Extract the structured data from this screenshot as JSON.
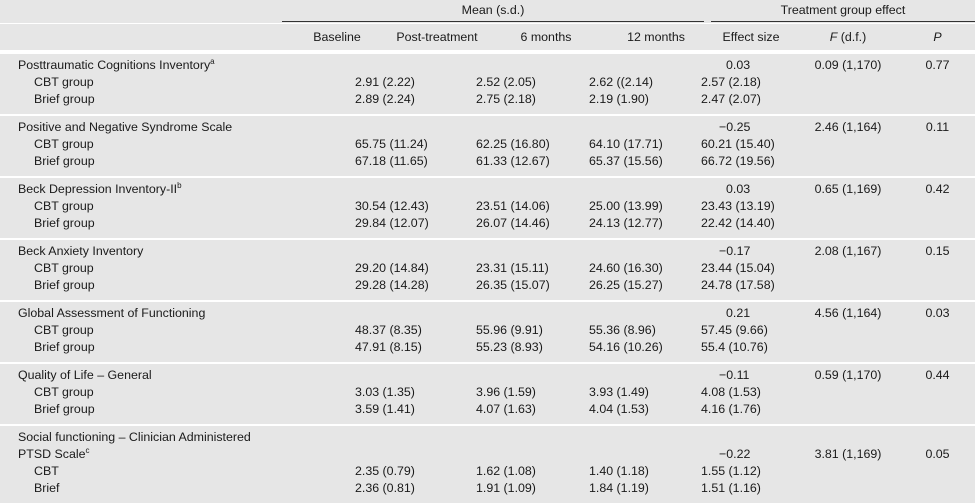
{
  "header": {
    "mean_group": "Mean (s.d.)",
    "effect_group": "Treatment group effect",
    "columns": {
      "baseline": "Baseline",
      "post": "Post-treatment",
      "m6": "6 months",
      "m12": "12 months",
      "effect_size": "Effect size",
      "f_stat": "F",
      "f_df": "(d.f.)",
      "p": "P"
    }
  },
  "sections": [
    {
      "title": "Posttraumatic Cognitions Inventory",
      "sup": "a",
      "effect_size": "0.03",
      "f": "0.09 (1,170)",
      "p": "0.77",
      "rows": [
        {
          "label": "CBT group",
          "baseline": "2.91 (2.22)",
          "post": "2.52 (2.05)",
          "m6": "2.62 ((2.14)",
          "m12": "2.57 (2.18)"
        },
        {
          "label": "Brief group",
          "baseline": "2.89 (2.24)",
          "post": "2.75 (2.18)",
          "m6": "2.19 (1.90)",
          "m12": "2.47 (2.07)"
        }
      ]
    },
    {
      "title": "Positive and Negative Syndrome Scale",
      "sup": "",
      "effect_size": "−0.25",
      "f": "2.46 (1,164)",
      "p": "0.11",
      "rows": [
        {
          "label": "CBT group",
          "baseline": "65.75 (11.24)",
          "post": "62.25 (16.80)",
          "m6": "64.10 (17.71)",
          "m12": "60.21 (15.40)"
        },
        {
          "label": "Brief group",
          "baseline": "67.18 (11.65)",
          "post": "61.33 (12.67)",
          "m6": "65.37 (15.56)",
          "m12": "66.72 (19.56)"
        }
      ]
    },
    {
      "title": "Beck Depression Inventory-II",
      "sup": "b",
      "effect_size": "0.03",
      "f": "0.65 (1,169)",
      "p": "0.42",
      "rows": [
        {
          "label": "CBT group",
          "baseline": "30.54 (12.43)",
          "post": "23.51 (14.06)",
          "m6": "25.00 (13.99)",
          "m12": "23.43 (13.19)"
        },
        {
          "label": "Brief group",
          "baseline": "29.84 (12.07)",
          "post": "26.07 (14.46)",
          "m6": "24.13 (12.77)",
          "m12": "22.42 (14.40)"
        }
      ]
    },
    {
      "title": "Beck Anxiety Inventory",
      "sup": "",
      "effect_size": "−0.17",
      "f": "2.08 (1,167)",
      "p": "0.15",
      "rows": [
        {
          "label": "CBT group",
          "baseline": "29.20 (14.84)",
          "post": "23.31 (15.11)",
          "m6": "24.60 (16.30)",
          "m12": "23.44 (15.04)"
        },
        {
          "label": "Brief group",
          "baseline": "29.28 (14.28)",
          "post": "26.35 (15.07)",
          "m6": "26.25 (15.27)",
          "m12": "24.78 (17.58)"
        }
      ]
    },
    {
      "title": "Global Assessment of Functioning",
      "sup": "",
      "effect_size": "0.21",
      "f": "4.56 (1,164)",
      "p": "0.03",
      "rows": [
        {
          "label": "CBT group",
          "baseline": "48.37 (8.35)",
          "post": "55.96 (9.91)",
          "m6": "55.36 (8.96)",
          "m12": "57.45 (9.66)"
        },
        {
          "label": "Brief group",
          "baseline": "47.91 (8.15)",
          "post": "55.23 (8.93)",
          "m6": "54.16 (10.26)",
          "m12": "55.4 (10.76)"
        }
      ]
    },
    {
      "title": "Quality of Life – General",
      "sup": "",
      "effect_size": "−0.11",
      "f": "0.59 (1,170)",
      "p": "0.44",
      "rows": [
        {
          "label": "CBT group",
          "baseline": "3.03 (1.35)",
          "post": "3.96 (1.59)",
          "m6": "3.93 (1.49)",
          "m12": "4.08 (1.53)"
        },
        {
          "label": "Brief group",
          "baseline": "3.59 (1.41)",
          "post": "4.07 (1.63)",
          "m6": "4.04 (1.53)",
          "m12": "4.16 (1.76)"
        }
      ]
    },
    {
      "title": "Social functioning – Clinician Administered",
      "title2": "PTSD Scale",
      "sup": "c",
      "effect_size": "−0.22",
      "f": "3.81 (1,169)",
      "p": "0.05",
      "rows": [
        {
          "label": "CBT",
          "baseline": "2.35 (0.79)",
          "post": "1.62 (1.08)",
          "m6": "1.40 (1.18)",
          "m12": "1.55 (1.12)"
        },
        {
          "label": "Brief",
          "baseline": "2.36 (0.81)",
          "post": "1.91 (1.09)",
          "m6": "1.84 (1.19)",
          "m12": "1.51 (1.16)"
        }
      ]
    }
  ]
}
